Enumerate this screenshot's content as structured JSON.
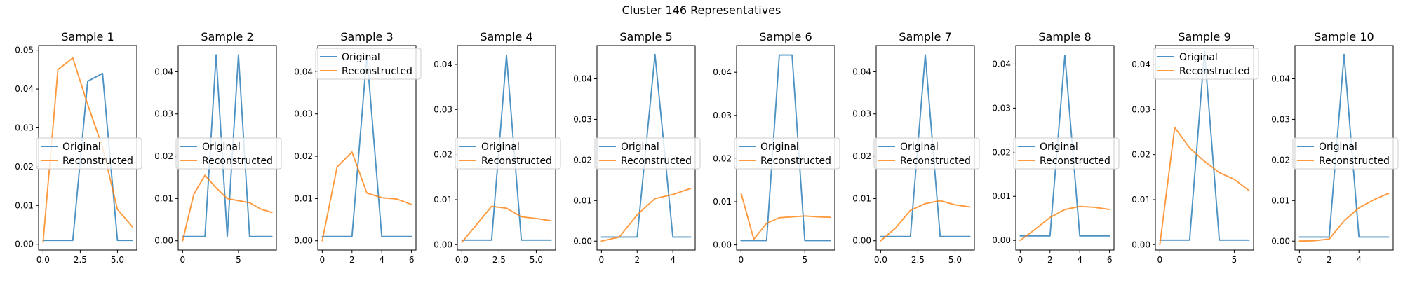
{
  "figure": {
    "title": "Cluster 146 Representatives"
  },
  "colors": {
    "original": "#1f77b4",
    "reconstructed": "#ff7f0e"
  },
  "chart_data": [
    {
      "type": "line",
      "title": "Sample 1",
      "xlim": [
        -0.3,
        6.3
      ],
      "ylim": [
        -0.0015,
        0.0512
      ],
      "xticks": [
        0.0,
        2.5,
        5.0
      ],
      "xticklabels": [
        "0.0",
        "2.5",
        "5.0"
      ],
      "yticks": [
        0,
        0.01,
        0.02,
        0.03,
        0.04,
        0.05
      ],
      "yticklabels": [
        "0.00",
        "0.01",
        "0.02",
        "0.03",
        "0.04",
        "0.05"
      ],
      "legend": "center-left",
      "series": [
        {
          "name": "Original",
          "x": [
            0,
            1,
            2,
            3,
            4,
            5,
            6
          ],
          "values": [
            0.001,
            0.001,
            0.001,
            0.042,
            0.044,
            0.001,
            0.001
          ]
        },
        {
          "name": "Reconstructed",
          "x": [
            0,
            1,
            2,
            3,
            4,
            5,
            6
          ],
          "values": [
            0.0005,
            0.045,
            0.048,
            0.036,
            0.025,
            0.009,
            0.0045
          ]
        }
      ]
    },
    {
      "type": "line",
      "title": "Sample 2",
      "xlim": [
        -0.4,
        8.4
      ],
      "ylim": [
        -0.0022,
        0.0462
      ],
      "xticks": [
        0,
        5
      ],
      "xticklabels": [
        "0",
        "5"
      ],
      "yticks": [
        0,
        0.01,
        0.02,
        0.03,
        0.04
      ],
      "yticklabels": [
        "0.00",
        "0.01",
        "0.02",
        "0.03",
        "0.04"
      ],
      "legend": "center-left",
      "series": [
        {
          "name": "Original",
          "x": [
            0,
            1,
            2,
            3,
            4,
            5,
            6,
            7,
            8
          ],
          "values": [
            0.001,
            0.001,
            0.001,
            0.044,
            0.001,
            0.044,
            0.001,
            0.001,
            0.001
          ]
        },
        {
          "name": "Reconstructed",
          "x": [
            0,
            1,
            2,
            3,
            4,
            5,
            6,
            7,
            8
          ],
          "values": [
            0.0,
            0.011,
            0.0155,
            0.0125,
            0.01,
            0.0095,
            0.009,
            0.0075,
            0.0067
          ]
        }
      ]
    },
    {
      "type": "line",
      "title": "Sample 3",
      "xlim": [
        -0.3,
        6.3
      ],
      "ylim": [
        -0.0022,
        0.0462
      ],
      "xticks": [
        0,
        2,
        4,
        6
      ],
      "xticklabels": [
        "0",
        "2",
        "4",
        "6"
      ],
      "yticks": [
        0,
        0.01,
        0.02,
        0.03,
        0.04
      ],
      "yticklabels": [
        "0.00",
        "0.01",
        "0.02",
        "0.03",
        "0.04"
      ],
      "legend": "upper-left",
      "series": [
        {
          "name": "Original",
          "x": [
            0,
            1,
            2,
            3,
            4,
            5,
            6
          ],
          "values": [
            0.001,
            0.001,
            0.001,
            0.044,
            0.001,
            0.001,
            0.001
          ]
        },
        {
          "name": "Reconstructed",
          "x": [
            0,
            1,
            2,
            3,
            4,
            5,
            6
          ],
          "values": [
            0.0,
            0.0175,
            0.021,
            0.0113,
            0.0102,
            0.0099,
            0.0086
          ]
        }
      ]
    },
    {
      "type": "line",
      "title": "Sample 4",
      "xlim": [
        -0.3,
        6.3
      ],
      "ylim": [
        -0.0012,
        0.0442
      ],
      "xticks": [
        0.0,
        2.5,
        5.0
      ],
      "xticklabels": [
        "0.0",
        "2.5",
        "5.0"
      ],
      "yticks": [
        0,
        0.01,
        0.02,
        0.03,
        0.04
      ],
      "yticklabels": [
        "0.00",
        "0.01",
        "0.02",
        "0.03",
        "0.04"
      ],
      "legend": "center-left",
      "series": [
        {
          "name": "Original",
          "x": [
            0,
            1,
            2,
            3,
            4,
            5,
            6
          ],
          "values": [
            0.001,
            0.001,
            0.001,
            0.042,
            0.001,
            0.001,
            0.001
          ]
        },
        {
          "name": "Reconstructed",
          "x": [
            0,
            1,
            2,
            3,
            4,
            5,
            6
          ],
          "values": [
            0.0005,
            0.0045,
            0.0085,
            0.0081,
            0.0062,
            0.0058,
            0.0053
          ]
        }
      ]
    },
    {
      "type": "line",
      "title": "Sample 5",
      "xlim": [
        -0.25,
        5.25
      ],
      "ylim": [
        -0.0022,
        0.0482
      ],
      "xticks": [
        0,
        2,
        4
      ],
      "xticklabels": [
        "0",
        "2",
        "4"
      ],
      "yticks": [
        0,
        0.01,
        0.02,
        0.03,
        0.04
      ],
      "yticklabels": [
        "0.00",
        "0.01",
        "0.02",
        "0.03",
        "0.04"
      ],
      "legend": "center-left",
      "series": [
        {
          "name": "Original",
          "x": [
            0,
            1,
            2,
            3,
            4,
            5
          ],
          "values": [
            0.001,
            0.001,
            0.001,
            0.046,
            0.001,
            0.001
          ]
        },
        {
          "name": "Reconstructed",
          "x": [
            0,
            1,
            2,
            3,
            4,
            5
          ],
          "values": [
            0.0,
            0.001,
            0.0065,
            0.0105,
            0.0115,
            0.013
          ]
        }
      ]
    },
    {
      "type": "line",
      "title": "Sample 6",
      "xlim": [
        -0.35,
        7.35
      ],
      "ylim": [
        -0.0012,
        0.0462
      ],
      "xticks": [
        0,
        5
      ],
      "xticklabels": [
        "0",
        "5"
      ],
      "yticks": [
        0,
        0.01,
        0.02,
        0.03,
        0.04
      ],
      "yticklabels": [
        "0.00",
        "0.01",
        "0.02",
        "0.03",
        "0.04"
      ],
      "legend": "center-left",
      "series": [
        {
          "name": "Original",
          "x": [
            0,
            1,
            2,
            3,
            4,
            5,
            6,
            7
          ],
          "values": [
            0.001,
            0.001,
            0.001,
            0.044,
            0.044,
            0.001,
            0.001,
            0.001
          ]
        },
        {
          "name": "Reconstructed",
          "x": [
            0,
            1,
            2,
            3,
            4,
            5,
            6,
            7
          ],
          "values": [
            0.012,
            0.0013,
            0.005,
            0.0063,
            0.0065,
            0.0067,
            0.0065,
            0.0064
          ]
        }
      ]
    },
    {
      "type": "line",
      "title": "Sample 7",
      "xlim": [
        -0.3,
        6.3
      ],
      "ylim": [
        -0.0022,
        0.0462
      ],
      "xticks": [
        0.0,
        2.5,
        5.0
      ],
      "xticklabels": [
        "0.0",
        "2.5",
        "5.0"
      ],
      "yticks": [
        0,
        0.01,
        0.02,
        0.03,
        0.04
      ],
      "yticklabels": [
        "0.00",
        "0.01",
        "0.02",
        "0.03",
        "0.04"
      ],
      "legend": "center-left",
      "series": [
        {
          "name": "Original",
          "x": [
            0,
            1,
            2,
            3,
            4,
            5,
            6
          ],
          "values": [
            0.001,
            0.001,
            0.001,
            0.044,
            0.001,
            0.001,
            0.001
          ]
        },
        {
          "name": "Reconstructed",
          "x": [
            0,
            1,
            2,
            3,
            4,
            5,
            6
          ],
          "values": [
            0.0,
            0.003,
            0.0072,
            0.0088,
            0.0095,
            0.0085,
            0.008
          ]
        }
      ]
    },
    {
      "type": "line",
      "title": "Sample 8",
      "xlim": [
        -0.3,
        6.3
      ],
      "ylim": [
        -0.0022,
        0.0442
      ],
      "xticks": [
        0,
        2,
        4,
        6
      ],
      "xticklabels": [
        "0",
        "2",
        "4",
        "6"
      ],
      "yticks": [
        0,
        0.01,
        0.02,
        0.03,
        0.04
      ],
      "yticklabels": [
        "0.00",
        "0.01",
        "0.02",
        "0.03",
        "0.04"
      ],
      "legend": "center-left",
      "series": [
        {
          "name": "Original",
          "x": [
            0,
            1,
            2,
            3,
            4,
            5,
            6
          ],
          "values": [
            0.001,
            0.001,
            0.001,
            0.042,
            0.001,
            0.001,
            0.001
          ]
        },
        {
          "name": "Reconstructed",
          "x": [
            0,
            1,
            2,
            3,
            4,
            5,
            6
          ],
          "values": [
            0.0,
            0.0025,
            0.0052,
            0.007,
            0.0077,
            0.0075,
            0.007
          ]
        }
      ]
    },
    {
      "type": "line",
      "title": "Sample 9",
      "xlim": [
        -0.3,
        6.3
      ],
      "ylim": [
        -0.0012,
        0.0442
      ],
      "xticks": [
        0,
        5
      ],
      "xticklabels": [
        "0",
        "5"
      ],
      "yticks": [
        0,
        0.01,
        0.02,
        0.03,
        0.04
      ],
      "yticklabels": [
        "0.00",
        "0.01",
        "0.02",
        "0.03",
        "0.04"
      ],
      "legend": "upper-left",
      "series": [
        {
          "name": "Original",
          "x": [
            0,
            1,
            2,
            3,
            4,
            5,
            6
          ],
          "values": [
            0.001,
            0.001,
            0.001,
            0.043,
            0.001,
            0.001,
            0.001
          ]
        },
        {
          "name": "Reconstructed",
          "x": [
            0,
            1,
            2,
            3,
            4,
            5,
            6
          ],
          "values": [
            0.0,
            0.026,
            0.0215,
            0.0185,
            0.016,
            0.0145,
            0.012
          ]
        }
      ]
    },
    {
      "type": "line",
      "title": "Sample 10",
      "xlim": [
        -0.3,
        6.3
      ],
      "ylim": [
        -0.0022,
        0.0482
      ],
      "xticks": [
        0,
        2,
        4
      ],
      "xticklabels": [
        "0",
        "2",
        "4"
      ],
      "yticks": [
        0,
        0.01,
        0.02,
        0.03,
        0.04
      ],
      "yticklabels": [
        "0.00",
        "0.01",
        "0.02",
        "0.03",
        "0.04"
      ],
      "legend": "center-left",
      "series": [
        {
          "name": "Original",
          "x": [
            0,
            1,
            2,
            3,
            4,
            5,
            6
          ],
          "values": [
            0.001,
            0.001,
            0.001,
            0.046,
            0.001,
            0.001,
            0.001
          ]
        },
        {
          "name": "Reconstructed",
          "x": [
            0,
            1,
            2,
            3,
            4,
            5,
            6
          ],
          "values": [
            0.0,
            0.0001,
            0.0005,
            0.005,
            0.0082,
            0.0102,
            0.0118
          ]
        }
      ]
    }
  ]
}
